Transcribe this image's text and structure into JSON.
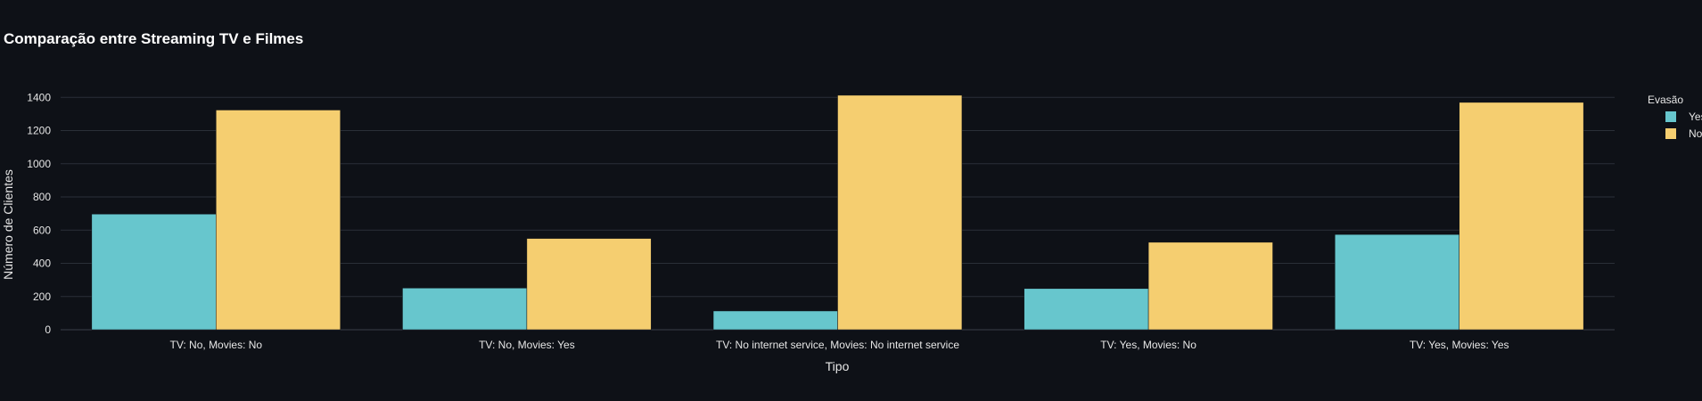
{
  "chart_data": {
    "type": "bar",
    "title": "Comparação entre Streaming TV e Filmes",
    "xlabel": "Tipo",
    "ylabel": "Número de Clientes",
    "categories": [
      "TV: No, Movies: No",
      "TV: No, Movies: Yes",
      "TV: No internet service, Movies: No internet service",
      "TV: Yes, Movies: No",
      "TV: Yes, Movies: Yes"
    ],
    "series": [
      {
        "name": "Yes",
        "color": "#67c6cd",
        "values": [
          697,
          251,
          113,
          248,
          574
        ]
      },
      {
        "name": "No",
        "color": "#f5ce70",
        "values": [
          1324,
          550,
          1413,
          527,
          1370
        ]
      }
    ],
    "ylim": [
      0,
      1450
    ],
    "yticks": [
      0,
      200,
      400,
      600,
      800,
      1000,
      1200,
      1400
    ],
    "grid": true,
    "legend": {
      "title": "Evasão",
      "position": "top-right"
    },
    "colors": {
      "background": "#0e1117",
      "grid": "#2a2f38",
      "text": "#e6e6e6"
    }
  }
}
